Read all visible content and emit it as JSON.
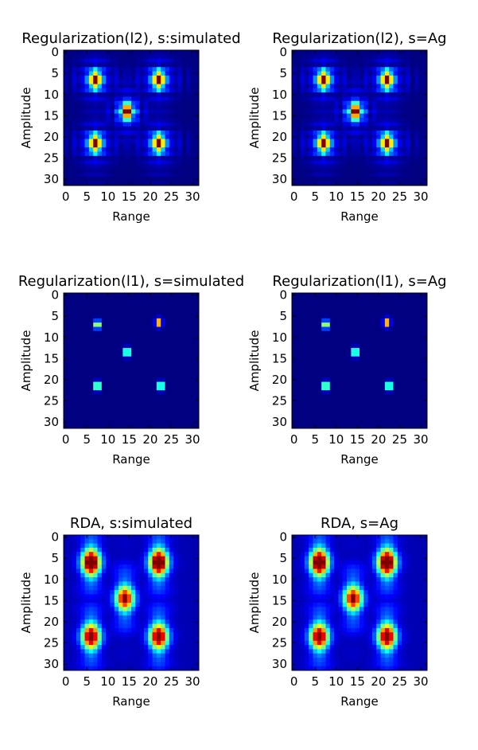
{
  "figure": {
    "background": "#ffffff",
    "colormap": "jet",
    "panel_background": "#00007f"
  },
  "chart_data": [
    {
      "type": "heatmap",
      "title": "Regularization(l2), s:simulated",
      "xlabel": "Range",
      "ylabel": "Amplitude",
      "xlim": [
        0,
        31
      ],
      "ylim": [
        31,
        0
      ],
      "xticks": [
        "0",
        "5",
        "10",
        "15",
        "20",
        "25",
        "30"
      ],
      "yticks": [
        "0",
        "5",
        "10",
        "15",
        "20",
        "25",
        "30"
      ],
      "targets": [
        {
          "x": 7,
          "y": 6.5,
          "peak": 1.0
        },
        {
          "x": 22,
          "y": 6.5,
          "peak": 1.0
        },
        {
          "x": 14.5,
          "y": 14,
          "peak": 0.95
        },
        {
          "x": 7,
          "y": 21.5,
          "peak": 1.0
        },
        {
          "x": 22,
          "y": 21.5,
          "peak": 1.0
        }
      ],
      "note": "sharp peaks with faint sidelobe ringing"
    },
    {
      "type": "heatmap",
      "title": "Regularization(l2), s=Ag",
      "xlabel": "Range",
      "ylabel": "Amplitude",
      "xlim": [
        0,
        31
      ],
      "ylim": [
        31,
        0
      ],
      "xticks": [
        "0",
        "5",
        "10",
        "15",
        "20",
        "25",
        "30"
      ],
      "yticks": [
        "0",
        "5",
        "10",
        "15",
        "20",
        "25",
        "30"
      ],
      "targets": [
        {
          "x": 7,
          "y": 6.5,
          "peak": 1.0
        },
        {
          "x": 22,
          "y": 6.5,
          "peak": 1.0
        },
        {
          "x": 14.5,
          "y": 14,
          "peak": 0.95
        },
        {
          "x": 7,
          "y": 21.5,
          "peak": 1.0
        },
        {
          "x": 22,
          "y": 21.5,
          "peak": 1.0
        }
      ],
      "note": "sharp peaks with faint sidelobe ringing"
    },
    {
      "type": "heatmap",
      "title": "Regularization(l1), s=simulated",
      "xlabel": "Range",
      "ylabel": "Amplitude",
      "xlim": [
        0,
        31
      ],
      "ylim": [
        31,
        0
      ],
      "xticks": [
        "0",
        "5",
        "10",
        "15",
        "20",
        "25",
        "30"
      ],
      "yticks": [
        "0",
        "5",
        "10",
        "15",
        "20",
        "25",
        "30"
      ],
      "targets": [
        {
          "x": 7.5,
          "y": 7,
          "peak": 0.85
        },
        {
          "x": 22,
          "y": 6.5,
          "peak": 0.9
        },
        {
          "x": 14.5,
          "y": 13.5,
          "peak": 0.85
        },
        {
          "x": 7.5,
          "y": 21.5,
          "peak": 0.9
        },
        {
          "x": 22.5,
          "y": 21.5,
          "peak": 0.85
        }
      ],
      "note": "very sparse, small point responses"
    },
    {
      "type": "heatmap",
      "title": "Regularization(l1), s=Ag",
      "xlabel": "Range",
      "ylabel": "Amplitude",
      "xlim": [
        0,
        31
      ],
      "ylim": [
        31,
        0
      ],
      "xticks": [
        "0",
        "5",
        "10",
        "15",
        "20",
        "25",
        "30"
      ],
      "yticks": [
        "0",
        "5",
        "10",
        "15",
        "20",
        "25",
        "30"
      ],
      "targets": [
        {
          "x": 7.5,
          "y": 7,
          "peak": 0.85
        },
        {
          "x": 22,
          "y": 6.5,
          "peak": 0.9
        },
        {
          "x": 14.5,
          "y": 13.5,
          "peak": 0.85
        },
        {
          "x": 7.5,
          "y": 21.5,
          "peak": 0.9
        },
        {
          "x": 22.5,
          "y": 21.5,
          "peak": 0.85
        }
      ],
      "note": "very sparse, small point responses"
    },
    {
      "type": "heatmap",
      "title": "RDA, s:simulated",
      "xlabel": "Range",
      "ylabel": "Amplitude",
      "xlim": [
        0,
        31
      ],
      "ylim": [
        31,
        0
      ],
      "xticks": [
        "0",
        "5",
        "10",
        "15",
        "20",
        "25",
        "30"
      ],
      "yticks": [
        "0",
        "5",
        "10",
        "15",
        "20",
        "25",
        "30"
      ],
      "targets": [
        {
          "x": 6,
          "y": 6,
          "peak": 1.0
        },
        {
          "x": 22,
          "y": 6,
          "peak": 1.0
        },
        {
          "x": 14,
          "y": 14.5,
          "peak": 0.75
        },
        {
          "x": 6,
          "y": 23.5,
          "peak": 0.85
        },
        {
          "x": 22,
          "y": 23.5,
          "peak": 0.85
        }
      ],
      "note": "broad blurred responses with vertical smearing"
    },
    {
      "type": "heatmap",
      "title": "RDA, s=Ag",
      "xlabel": "Range",
      "ylabel": "Amplitude",
      "xlim": [
        0,
        31
      ],
      "ylim": [
        31,
        0
      ],
      "xticks": [
        "0",
        "5",
        "10",
        "15",
        "20",
        "25",
        "30"
      ],
      "yticks": [
        "0",
        "5",
        "10",
        "15",
        "20",
        "25",
        "30"
      ],
      "targets": [
        {
          "x": 6,
          "y": 6,
          "peak": 1.0
        },
        {
          "x": 22,
          "y": 6,
          "peak": 1.0
        },
        {
          "x": 14,
          "y": 14.5,
          "peak": 0.75
        },
        {
          "x": 6,
          "y": 23.5,
          "peak": 0.85
        },
        {
          "x": 22,
          "y": 23.5,
          "peak": 0.85
        }
      ],
      "note": "broad blurred responses with vertical smearing"
    }
  ]
}
